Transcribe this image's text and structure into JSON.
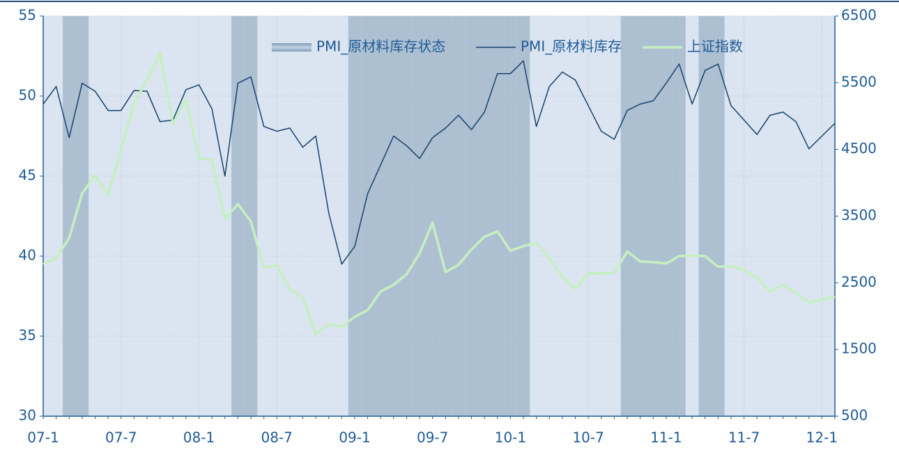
{
  "chart_data": {
    "type": "line",
    "categories": [
      "07-1",
      null,
      null,
      null,
      null,
      null,
      "07-7",
      null,
      null,
      null,
      null,
      null,
      "08-1",
      null,
      null,
      null,
      null,
      null,
      "08-7",
      null,
      null,
      null,
      null,
      null,
      "09-1",
      null,
      null,
      null,
      null,
      null,
      "09-7",
      null,
      null,
      null,
      null,
      null,
      "10-1",
      null,
      null,
      null,
      null,
      null,
      "10-7",
      null,
      null,
      null,
      null,
      null,
      "11-1",
      null,
      null,
      null,
      null,
      null,
      "11-7",
      null,
      null,
      null,
      null,
      null,
      "12-1",
      null
    ],
    "series": [
      {
        "name": "PMI_原材料库存状态",
        "type": "band",
        "color": "#adc0d2",
        "values": [
          0,
          0,
          1,
          1,
          0,
          0,
          0,
          0,
          0,
          0,
          0,
          0,
          0,
          0,
          0,
          1,
          1,
          0,
          0,
          0,
          0,
          0,
          0,
          0,
          1,
          1,
          1,
          1,
          1,
          1,
          1,
          1,
          1,
          1,
          1,
          1,
          1,
          1,
          0,
          0,
          0,
          0,
          0,
          0,
          0,
          1,
          1,
          1,
          1,
          1,
          0,
          1,
          1,
          0,
          0,
          0,
          0,
          0,
          0,
          0,
          0,
          0
        ]
      },
      {
        "name": "PMI_原材料库存",
        "color": "#17406d",
        "values": [
          49.5,
          50.6,
          47.4,
          50.8,
          50.3,
          49.1,
          49.1,
          50.35,
          50.3,
          48.4,
          48.5,
          50.4,
          50.7,
          49.2,
          45.0,
          50.8,
          51.2,
          48.1,
          47.8,
          48.0,
          46.8,
          47.5,
          42.7,
          39.5,
          40.6,
          43.9,
          45.7,
          47.5,
          46.9,
          46.1,
          47.4,
          48.0,
          48.8,
          47.9,
          49.0,
          51.4,
          51.4,
          52.2,
          48.1,
          50.6,
          51.5,
          51.0,
          49.4,
          47.8,
          47.3,
          49.1,
          49.5,
          49.7,
          50.8,
          52.0,
          49.5,
          51.6,
          52.0,
          49.4,
          48.5,
          47.6,
          48.8,
          49.0,
          48.4,
          46.7,
          47.5,
          48.3
        ]
      },
      {
        "name": "上证指数",
        "color": "#c6efc0",
        "axis": "y2",
        "values": [
          2780,
          2870,
          3170,
          3840,
          4110,
          3820,
          4500,
          5200,
          5540,
          5950,
          4880,
          5250,
          4370,
          4340,
          3460,
          3680,
          3420,
          2730,
          2760,
          2400,
          2280,
          1730,
          1880,
          1840,
          1990,
          2090,
          2370,
          2470,
          2630,
          2940,
          3400,
          2660,
          2770,
          3000,
          3190,
          3270,
          2980,
          3050,
          3100,
          2870,
          2590,
          2410,
          2640,
          2640,
          2650,
          2970,
          2820,
          2810,
          2790,
          2900,
          2910,
          2900,
          2740,
          2750,
          2690,
          2570,
          2370,
          2470,
          2350,
          2200,
          2250,
          2290
        ]
      }
    ],
    "ylim": [
      30,
      55
    ],
    "yticks": [
      30,
      35,
      40,
      45,
      50,
      55
    ],
    "y2lim": [
      500,
      6500
    ],
    "y2ticks": [
      500,
      1500,
      2500,
      3500,
      4500,
      5500,
      6500
    ],
    "grid": true,
    "legend": "top"
  }
}
